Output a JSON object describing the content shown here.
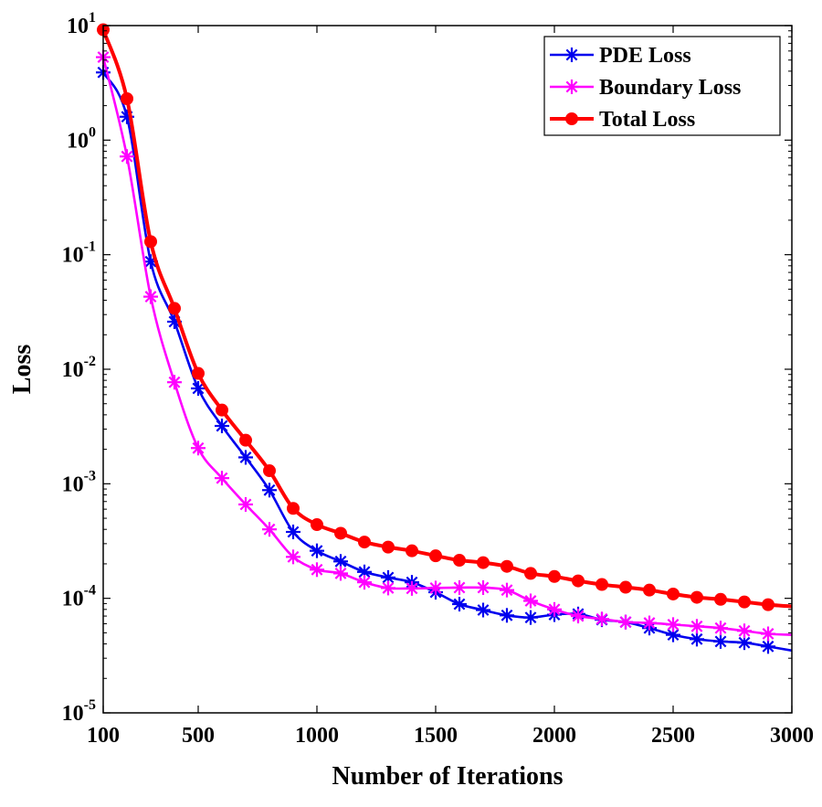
{
  "chart_data": {
    "type": "line",
    "xlabel": "Number of Iterations",
    "ylabel": "Loss",
    "xlim": [
      100,
      3000
    ],
    "ylim_log10": [
      -5,
      1
    ],
    "yscale": "log",
    "grid": false,
    "legend_position": "top-right",
    "x_ticks": [
      100,
      500,
      1000,
      1500,
      2000,
      2500,
      3000
    ],
    "x_tick_labels": [
      "100",
      "500",
      "1000",
      "1500",
      "2000",
      "2500",
      "3000"
    ],
    "y_ticks": [
      {
        "base": "10",
        "exp": "1"
      },
      {
        "base": "10",
        "exp": "0"
      },
      {
        "base": "10",
        "exp": "-1"
      },
      {
        "base": "10",
        "exp": "-2"
      },
      {
        "base": "10",
        "exp": "-3"
      },
      {
        "base": "10",
        "exp": "-4"
      },
      {
        "base": "10",
        "exp": "-5"
      }
    ],
    "x": [
      100,
      200,
      300,
      400,
      500,
      600,
      700,
      800,
      900,
      1000,
      1100,
      1200,
      1300,
      1400,
      1500,
      1600,
      1700,
      1800,
      1900,
      2000,
      2100,
      2200,
      2300,
      2400,
      2500,
      2600,
      2700,
      2800,
      2900,
      3000
    ],
    "series": [
      {
        "name": "PDE Loss",
        "color": "#0000ee",
        "marker": "asterisk",
        "values": [
          3.9,
          1.6,
          0.087,
          0.026,
          0.0068,
          0.0032,
          0.0017,
          0.00088,
          0.00038,
          0.00026,
          0.00021,
          0.00017,
          0.000152,
          0.000138,
          0.000113,
          8.9e-05,
          7.9e-05,
          7.1e-05,
          6.8e-05,
          7.2e-05,
          7.3e-05,
          6.5e-05,
          6.2e-05,
          5.5e-05,
          4.8e-05,
          4.4e-05,
          4.2e-05,
          4.1e-05,
          3.8e-05,
          3.5e-05
        ]
      },
      {
        "name": "Boundary Loss",
        "color": "#ff00ff",
        "marker": "asterisk",
        "values": [
          5.3,
          0.72,
          0.043,
          0.0077,
          0.00205,
          0.00112,
          0.00066,
          0.0004,
          0.00023,
          0.000178,
          0.000165,
          0.000138,
          0.000123,
          0.000122,
          0.000123,
          0.000124,
          0.000124,
          0.000118,
          9.5e-05,
          8e-05,
          7e-05,
          6.6e-05,
          6.2e-05,
          6.1e-05,
          5.9e-05,
          5.7e-05,
          5.5e-05,
          5.2e-05,
          4.9e-05,
          4.8e-05
        ]
      },
      {
        "name": "Total Loss",
        "color": "#ff0000",
        "marker": "circle",
        "values": [
          9.2,
          2.3,
          0.13,
          0.034,
          0.0092,
          0.0044,
          0.0024,
          0.0013,
          0.00061,
          0.00044,
          0.00037,
          0.00031,
          0.00028,
          0.00026,
          0.000235,
          0.000215,
          0.000205,
          0.00019,
          0.000165,
          0.000155,
          0.000142,
          0.000132,
          0.000125,
          0.000118,
          0.000109,
          0.000102,
          9.8e-05,
          9.3e-05,
          8.8e-05,
          8.5e-05
        ]
      }
    ]
  }
}
